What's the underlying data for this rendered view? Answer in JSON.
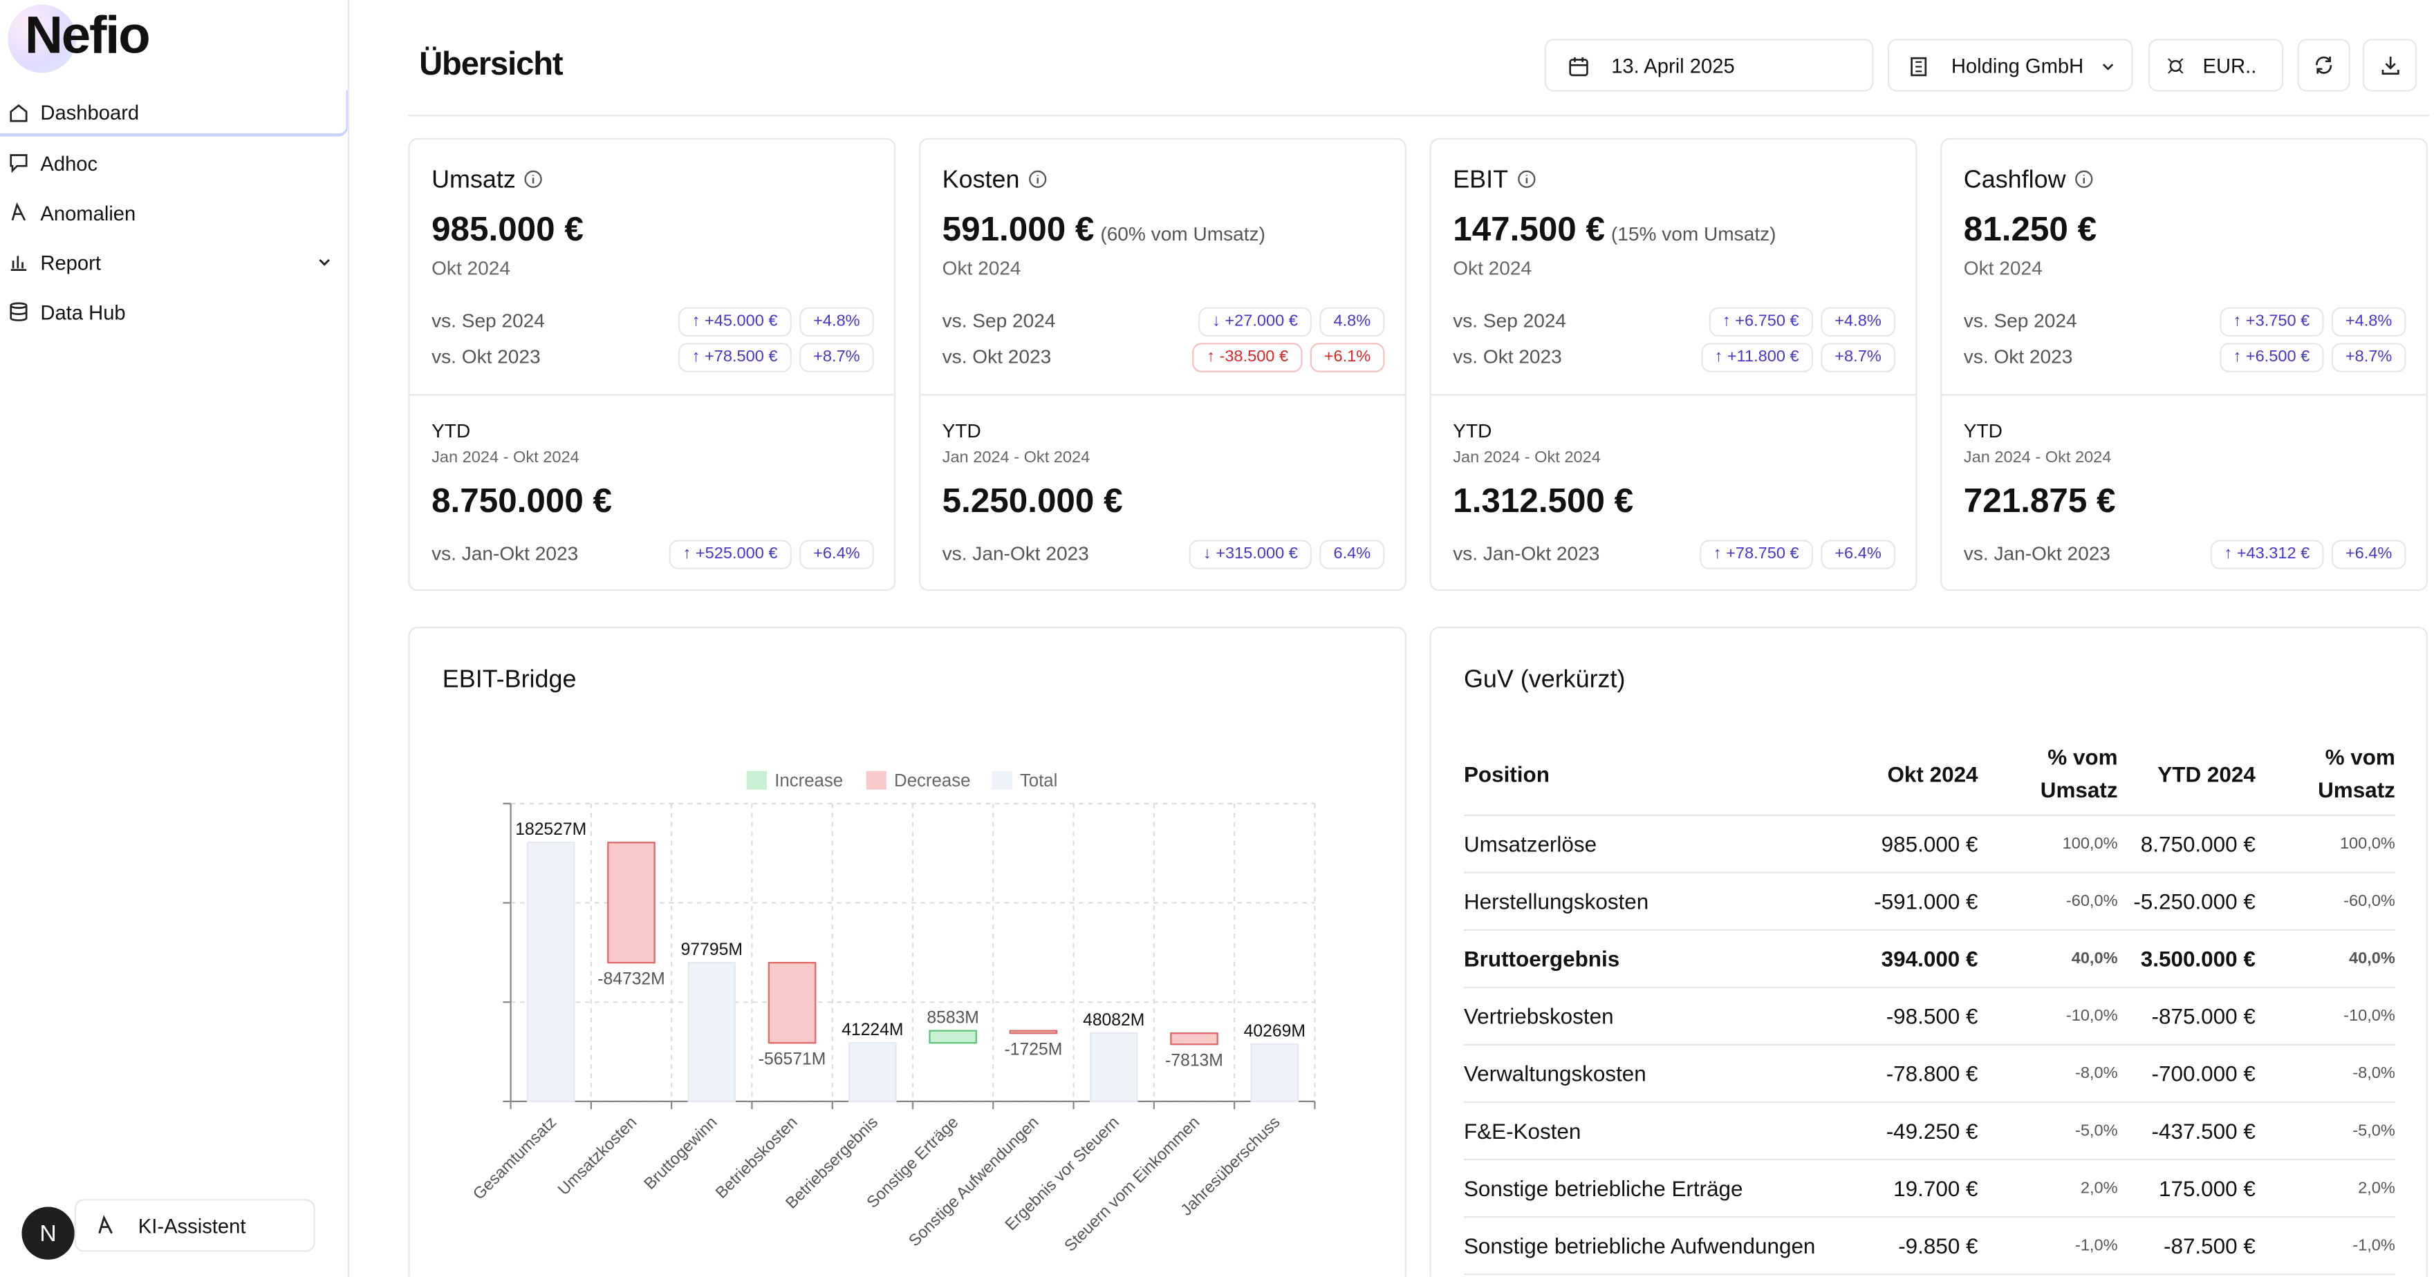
{
  "sidebar": {
    "logo": "Nefio",
    "nav": [
      "Dashboard",
      "Adhoc",
      "Anomalien",
      "Report",
      "Data Hub"
    ],
    "avatar": "N",
    "assistant": "KI-Assistent"
  },
  "header": {
    "title": "Übersicht",
    "date": "13. April 2025",
    "entity": "Holding GmbH",
    "currency": "EUR.."
  },
  "kpis": [
    {
      "title": "Umsatz",
      "value": "985.000 €",
      "period": "Okt 2024",
      "comparisons": [
        {
          "label": "vs. Sep 2024",
          "delta": "↑ +45.000 €",
          "pct": "+4.8%"
        },
        {
          "label": "vs. Okt 2023",
          "delta": "↑ +78.500 €",
          "pct": "+8.7%"
        }
      ],
      "ytd": {
        "label": "YTD",
        "range": "Jan 2024 - Okt 2024",
        "value": "8.750.000 €",
        "comparison": {
          "label": "vs. Jan-Okt 2023",
          "delta": "↑ +525.000 €",
          "pct": "+6.4%"
        }
      }
    },
    {
      "title": "Kosten",
      "value": "591.000 €",
      "note": "(60% vom Umsatz)",
      "period": "Okt 2024",
      "comparisons": [
        {
          "label": "vs. Sep 2024",
          "delta": "↓ +27.000 €",
          "pct": "4.8%"
        },
        {
          "label": "vs. Okt 2023",
          "delta": "↑ -38.500 €",
          "pct": "+6.1%",
          "color": "#dc2626"
        }
      ],
      "ytd": {
        "label": "YTD",
        "range": "Jan 2024 - Okt 2024",
        "value": "5.250.000 €",
        "comparison": {
          "label": "vs. Jan-Okt 2023",
          "delta": "↓ +315.000 €",
          "pct": "6.4%"
        }
      }
    },
    {
      "title": "EBIT",
      "value": "147.500 €",
      "note": "(15% vom Umsatz)",
      "period": "Okt 2024",
      "comparisons": [
        {
          "label": "vs. Sep 2024",
          "delta": "↑ +6.750 €",
          "pct": "+4.8%"
        },
        {
          "label": "vs. Okt 2023",
          "delta": "↑ +11.800 €",
          "pct": "+8.7%"
        }
      ],
      "ytd": {
        "label": "YTD",
        "range": "Jan 2024 - Okt 2024",
        "value": "1.312.500 €",
        "comparison": {
          "label": "vs. Jan-Okt 2023",
          "delta": "↑ +78.750 €",
          "pct": "+6.4%"
        }
      }
    },
    {
      "title": "Cashflow",
      "value": "81.250 €",
      "period": "Okt 2024",
      "comparisons": [
        {
          "label": "vs. Sep 2024",
          "delta": "↑ +3.750 €",
          "pct": "+4.8%"
        },
        {
          "label": "vs. Okt 2023",
          "delta": "↑ +6.500 €",
          "pct": "+8.7%"
        }
      ],
      "ytd": {
        "label": "YTD",
        "range": "Jan 2024 - Okt 2024",
        "value": "721.875 €",
        "comparison": {
          "label": "vs. Jan-Okt 2023",
          "delta": "↑ +43.312 €",
          "pct": "+6.4%"
        }
      }
    }
  ],
  "ebit_bridge": {
    "chart_data": {
      "type": "waterfall",
      "title": "EBIT-Bridge",
      "legend": [
        {
          "name": "Increase",
          "color": "#c9f0d3",
          "stroke": "#5cc277"
        },
        {
          "name": "Decrease",
          "color": "#f7c9c9",
          "stroke": "#e06666"
        },
        {
          "name": "Total",
          "color": "#eef2f9",
          "stroke": "#e3e8f1"
        }
      ],
      "categories": [
        "Gesamtumsatz",
        "Umsatzkosten",
        "Bruttogewinn",
        "Betriebskosten",
        "Betriebsergebnis",
        "Sonstige Erträge",
        "Sonstige Aufwendungen",
        "Ergebnis vor Steuern",
        "Steuern vom Einkommen",
        "Jahresüberschuss"
      ],
      "kinds": [
        "Total",
        "Decrease",
        "Total",
        "Decrease",
        "Total",
        "Increase",
        "Decrease",
        "Total",
        "Decrease",
        "Total"
      ],
      "values": [
        182527,
        -84732,
        97795,
        -56571,
        41224,
        8583,
        -1725,
        48082,
        -7813,
        40269
      ],
      "value_labels": [
        "182527M",
        "-84732M",
        "97795M",
        "-56571M",
        "41224M",
        "8583M",
        "-1725M",
        "48082M",
        "-7813M",
        "40269M"
      ],
      "ylim": [
        0,
        210000
      ],
      "yticks": [
        0,
        70000,
        140000,
        210000
      ],
      "grid": true
    }
  },
  "guv": {
    "title": "GuV (verkürzt)",
    "columns": [
      "Position",
      "Okt 2024",
      "% vom Umsatz",
      "YTD 2024",
      "% vom Umsatz"
    ],
    "rows": [
      {
        "cells": [
          "Umsatzerlöse",
          "985.000 €",
          "100,0%",
          "8.750.000 €",
          "100,0%"
        ]
      },
      {
        "cells": [
          "Herstellungskosten",
          "-591.000 €",
          "-60,0%",
          "-5.250.000 €",
          "-60,0%"
        ]
      },
      {
        "cells": [
          "Bruttoergebnis",
          "394.000 €",
          "40,0%",
          "3.500.000 €",
          "40,0%"
        ],
        "bold": true
      },
      {
        "cells": [
          "Vertriebskosten",
          "-98.500 €",
          "-10,0%",
          "-875.000 €",
          "-10,0%"
        ]
      },
      {
        "cells": [
          "Verwaltungskosten",
          "-78.800 €",
          "-8,0%",
          "-700.000 €",
          "-8,0%"
        ]
      },
      {
        "cells": [
          "F&E-Kosten",
          "-49.250 €",
          "-5,0%",
          "-437.500 €",
          "-5,0%"
        ]
      },
      {
        "cells": [
          "Sonstige betriebliche Erträge",
          "19.700 €",
          "2,0%",
          "175.000 €",
          "2,0%"
        ]
      },
      {
        "cells": [
          "Sonstige betriebliche Aufwendungen",
          "-9.850 €",
          "-1,0%",
          "-87.500 €",
          "-1,0%"
        ]
      }
    ]
  }
}
